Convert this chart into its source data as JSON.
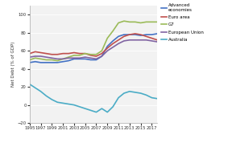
{
  "years": [
    1995,
    1996,
    1997,
    1998,
    1999,
    2000,
    2001,
    2002,
    2003,
    2004,
    2005,
    2006,
    2007,
    2008,
    2009,
    2010,
    2011,
    2012,
    2013,
    2014,
    2015,
    2016,
    2017,
    2018
  ],
  "advanced_economies": [
    47,
    48,
    47,
    47,
    47,
    47,
    48,
    49,
    51,
    51,
    51,
    50,
    50,
    54,
    65,
    71,
    76,
    78,
    78,
    78,
    77,
    78,
    78,
    79
  ],
  "euro_area": [
    57,
    59,
    58,
    57,
    56,
    56,
    57,
    57,
    58,
    57,
    57,
    55,
    54,
    57,
    63,
    68,
    72,
    76,
    78,
    79,
    78,
    76,
    74,
    72
  ],
  "g7": [
    50,
    52,
    51,
    50,
    50,
    49,
    51,
    53,
    55,
    55,
    57,
    56,
    56,
    60,
    74,
    82,
    91,
    93,
    92,
    92,
    91,
    92,
    92,
    92
  ],
  "european_union": [
    53,
    54,
    54,
    53,
    52,
    51,
    51,
    52,
    52,
    52,
    53,
    52,
    51,
    54,
    60,
    64,
    68,
    71,
    72,
    72,
    72,
    72,
    71,
    70
  ],
  "australia": [
    23,
    19,
    15,
    10,
    6,
    3,
    2,
    1,
    0,
    -2,
    -4,
    -6,
    -8,
    -4,
    -8,
    -2,
    8,
    13,
    15,
    14,
    13,
    11,
    8,
    7
  ],
  "colors": {
    "advanced_economies": "#4472C4",
    "euro_area": "#C0504D",
    "g7": "#9BBB59",
    "european_union": "#8064A2",
    "australia": "#4BACC6"
  },
  "ylabel": "Net Debt (% of GDP)",
  "ylim": [
    -20,
    110
  ],
  "yticks": [
    -20,
    0,
    20,
    40,
    60,
    80,
    100
  ],
  "xtick_years": [
    1995,
    1997,
    1999,
    2001,
    2003,
    2005,
    2007,
    2009,
    2011,
    2013,
    2015,
    2017
  ],
  "xlim": [
    1995,
    2018
  ],
  "legend": [
    "Advanced\neconomies",
    "Euro area",
    "G7",
    "European Union",
    "Australia"
  ],
  "plot_bg": "#f2f2f2",
  "fig_bg": "#ffffff",
  "grid_color": "#ffffff",
  "line_width": 1.2
}
